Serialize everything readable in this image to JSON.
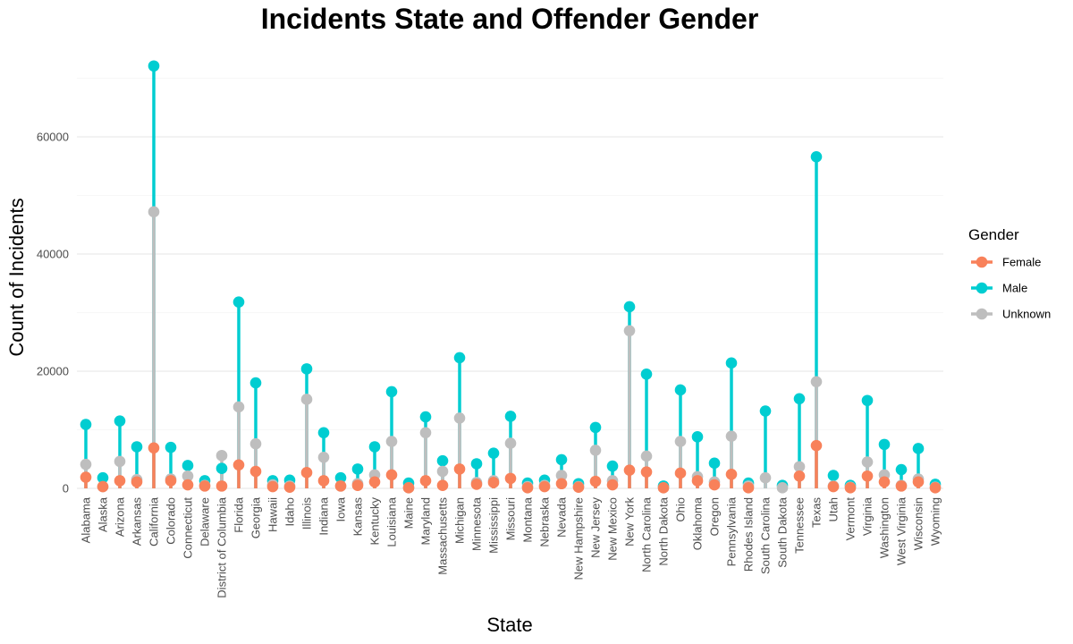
{
  "chart_data": {
    "type": "line",
    "title": "Incidents State and Offender Gender",
    "xlabel": "State",
    "ylabel": "Count of Incidents",
    "ylim": [
      0,
      72000
    ],
    "yticks": [
      0,
      20000,
      40000,
      60000
    ],
    "grid": true,
    "legend": {
      "title": "Gender",
      "placement": "right"
    },
    "categories": [
      "Alabama",
      "Alaska",
      "Arizona",
      "Arkansas",
      "California",
      "Colorado",
      "Connecticut",
      "Delaware",
      "District of Columbia",
      "Florida",
      "Georgia",
      "Hawaii",
      "Idaho",
      "Illinois",
      "Indiana",
      "Iowa",
      "Kansas",
      "Kentucky",
      "Louisiana",
      "Maine",
      "Maryland",
      "Massachusetts",
      "Michigan",
      "Minnesota",
      "Mississippi",
      "Missouri",
      "Montana",
      "Nebraska",
      "Nevada",
      "New Hampshire",
      "New Jersey",
      "New Mexico",
      "New York",
      "North Carolina",
      "North Dakota",
      "Ohio",
      "Oklahoma",
      "Oregon",
      "Pennsylvania",
      "Rhodes Island",
      "South Carolina",
      "South Dakota",
      "Tennessee",
      "Texas",
      "Utah",
      "Vermont",
      "Virginia",
      "Washington",
      "West Virginia",
      "Wisconsin",
      "Wyoming"
    ],
    "series": [
      {
        "name": "Female",
        "color": "#f8815a",
        "values": [
          1900,
          300,
          1300,
          1100,
          6900,
          1300,
          600,
          400,
          400,
          4000,
          2900,
          300,
          200,
          2700,
          1300,
          400,
          500,
          1100,
          2300,
          100,
          1300,
          500,
          3300,
          700,
          1000,
          1700,
          100,
          300,
          800,
          200,
          1200,
          600,
          3100,
          2800,
          100,
          2600,
          1300,
          600,
          2400,
          100,
          null,
          null,
          2100,
          7300,
          300,
          100,
          2100,
          1100,
          400,
          1100,
          100
        ]
      },
      {
        "name": "Male",
        "color": "#00cdd1",
        "values": [
          10900,
          1800,
          11500,
          7100,
          72100,
          7000,
          3900,
          1300,
          3400,
          31800,
          18000,
          1300,
          1400,
          20400,
          9500,
          1800,
          3300,
          7100,
          16500,
          900,
          12200,
          4700,
          22300,
          4200,
          6000,
          12300,
          900,
          1400,
          4900,
          800,
          10400,
          3800,
          31000,
          19500,
          400,
          16800,
          8800,
          4300,
          21400,
          900,
          13200,
          500,
          15300,
          56600,
          2200,
          500,
          15000,
          7500,
          3200,
          6800,
          700
        ]
      },
      {
        "name": "Unknown",
        "color": "#bebebe",
        "values": [
          4100,
          300,
          4600,
          1500,
          47200,
          1600,
          2100,
          500,
          5600,
          13900,
          7600,
          600,
          400,
          15200,
          5300,
          400,
          800,
          2300,
          8000,
          100,
          9500,
          2900,
          12000,
          1000,
          1300,
          7700,
          300,
          500,
          2200,
          300,
          6500,
          1300,
          26900,
          5500,
          100,
          8000,
          2000,
          1100,
          8900,
          400,
          1800,
          100,
          3700,
          18200,
          400,
          200,
          4500,
          2300,
          500,
          1600,
          200
        ]
      }
    ]
  }
}
